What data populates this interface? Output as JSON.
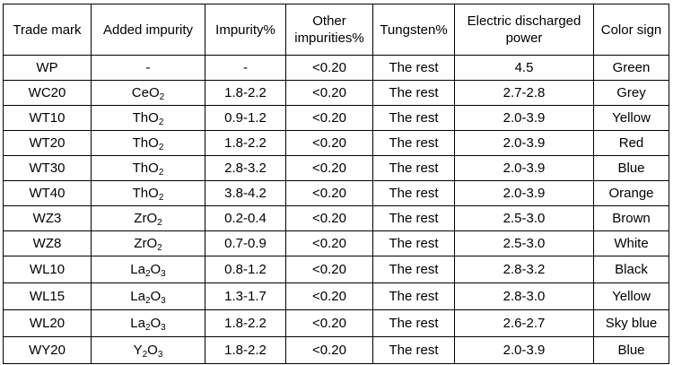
{
  "headers": [
    "Trade mark",
    "Added impurity",
    "Impurity%",
    "Other impurities%",
    "Tungsten%",
    "Electric discharged power",
    "Color sign"
  ],
  "rows": [
    {
      "trade_mark": "WP",
      "impurity_base": "-",
      "impurity_sub1": "",
      "impurity_mid": "",
      "impurity_sub2": "",
      "impurity_pct": "-",
      "other": "<0.20",
      "tungsten": "The rest",
      "power": "4.5",
      "color": "Green"
    },
    {
      "trade_mark": "WC20",
      "impurity_base": "CeO",
      "impurity_sub1": "",
      "impurity_mid": "",
      "impurity_sub2": "2",
      "impurity_pct": "1.8-2.2",
      "other": "<0.20",
      "tungsten": "The rest",
      "power": "2.7-2.8",
      "color": "Grey"
    },
    {
      "trade_mark": "WT10",
      "impurity_base": "ThO",
      "impurity_sub1": "",
      "impurity_mid": "",
      "impurity_sub2": "2",
      "impurity_pct": "0.9-1.2",
      "other": "<0.20",
      "tungsten": "The rest",
      "power": "2.0-3.9",
      "color": "Yellow"
    },
    {
      "trade_mark": "WT20",
      "impurity_base": "ThO",
      "impurity_sub1": "",
      "impurity_mid": "",
      "impurity_sub2": "2",
      "impurity_pct": "1.8-2.2",
      "other": "<0.20",
      "tungsten": "The rest",
      "power": "2.0-3.9",
      "color": "Red"
    },
    {
      "trade_mark": "WT30",
      "impurity_base": "ThO",
      "impurity_sub1": "",
      "impurity_mid": "",
      "impurity_sub2": "2",
      "impurity_pct": "2.8-3.2",
      "other": "<0.20",
      "tungsten": "The rest",
      "power": "2.0-3.9",
      "color": "Blue"
    },
    {
      "trade_mark": "WT40",
      "impurity_base": "ThO",
      "impurity_sub1": "",
      "impurity_mid": "",
      "impurity_sub2": "2",
      "impurity_pct": "3.8-4.2",
      "other": "<0.20",
      "tungsten": "The rest",
      "power": "2.0-3.9",
      "color": "Orange"
    },
    {
      "trade_mark": "WZ3",
      "impurity_base": "ZrO",
      "impurity_sub1": "",
      "impurity_mid": "",
      "impurity_sub2": "2",
      "impurity_pct": "0.2-0.4",
      "other": "<0.20",
      "tungsten": "The rest",
      "power": "2.5-3.0",
      "color": "Brown"
    },
    {
      "trade_mark": "WZ8",
      "impurity_base": "ZrO",
      "impurity_sub1": "",
      "impurity_mid": "",
      "impurity_sub2": "2",
      "impurity_pct": "0.7-0.9",
      "other": "<0.20",
      "tungsten": "The rest",
      "power": "2.5-3.0",
      "color": "White"
    },
    {
      "trade_mark": "WL10",
      "impurity_base": "La",
      "impurity_sub1": "2",
      "impurity_mid": "O",
      "impurity_sub2": "3",
      "impurity_pct": "0.8-1.2",
      "other": "<0.20",
      "tungsten": "The rest",
      "power": "2.8-3.2",
      "color": "Black"
    },
    {
      "trade_mark": "WL15",
      "impurity_base": "La",
      "impurity_sub1": "2",
      "impurity_mid": "O",
      "impurity_sub2": "3",
      "impurity_pct": "1.3-1.7",
      "other": "<0.20",
      "tungsten": "The rest",
      "power": "2.8-3.0",
      "color": "Yellow"
    },
    {
      "trade_mark": "WL20",
      "impurity_base": "La",
      "impurity_sub1": "2",
      "impurity_mid": "O",
      "impurity_sub2": "3",
      "impurity_pct": "1.8-2.2",
      "other": "<0.20",
      "tungsten": "The rest",
      "power": "2.6-2.7",
      "color": "Sky blue"
    },
    {
      "trade_mark": "WY20",
      "impurity_base": "Y",
      "impurity_sub1": "2",
      "impurity_mid": "O",
      "impurity_sub2": "3",
      "impurity_pct": "1.8-2.2",
      "other": "<0.20",
      "tungsten": "The rest",
      "power": "2.0-3.9",
      "color": "Blue"
    }
  ]
}
